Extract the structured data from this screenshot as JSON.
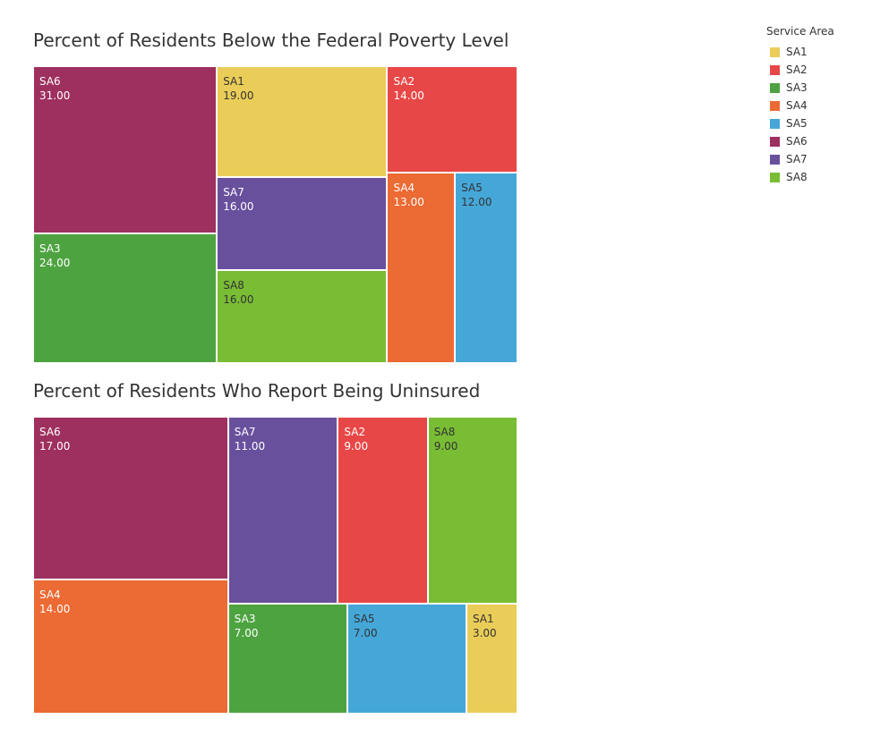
{
  "legend": {
    "title": "Service Area",
    "items": [
      {
        "label": "SA1",
        "color": "#EACD58"
      },
      {
        "label": "SA2",
        "color": "#E84747"
      },
      {
        "label": "SA3",
        "color": "#4EA341"
      },
      {
        "label": "SA4",
        "color": "#EC6A33"
      },
      {
        "label": "SA5",
        "color": "#45A7D8"
      },
      {
        "label": "SA6",
        "color": "#9E305F"
      },
      {
        "label": "SA7",
        "color": "#69509D"
      },
      {
        "label": "SA8",
        "color": "#79BD35"
      }
    ]
  },
  "chart_data": [
    {
      "type": "treemap",
      "title": "Percent of Residents Below the Federal Poverty Level",
      "tiles": [
        {
          "name": "SA6",
          "value": 31.0,
          "display": "31.00"
        },
        {
          "name": "SA3",
          "value": 24.0,
          "display": "24.00"
        },
        {
          "name": "SA1",
          "value": 19.0,
          "display": "19.00"
        },
        {
          "name": "SA7",
          "value": 16.0,
          "display": "16.00"
        },
        {
          "name": "SA8",
          "value": 16.0,
          "display": "16.00"
        },
        {
          "name": "SA2",
          "value": 14.0,
          "display": "14.00"
        },
        {
          "name": "SA4",
          "value": 13.0,
          "display": "13.00"
        },
        {
          "name": "SA5",
          "value": 12.0,
          "display": "12.00"
        }
      ]
    },
    {
      "type": "treemap",
      "title": "Percent of Residents Who Report Being Uninsured",
      "tiles": [
        {
          "name": "SA6",
          "value": 17.0,
          "display": "17.00"
        },
        {
          "name": "SA4",
          "value": 14.0,
          "display": "14.00"
        },
        {
          "name": "SA7",
          "value": 11.0,
          "display": "11.00"
        },
        {
          "name": "SA2",
          "value": 9.0,
          "display": "9.00"
        },
        {
          "name": "SA8",
          "value": 9.0,
          "display": "9.00"
        },
        {
          "name": "SA3",
          "value": 7.0,
          "display": "7.00"
        },
        {
          "name": "SA5",
          "value": 7.0,
          "display": "7.00"
        },
        {
          "name": "SA1",
          "value": 3.0,
          "display": "3.00"
        }
      ]
    }
  ]
}
